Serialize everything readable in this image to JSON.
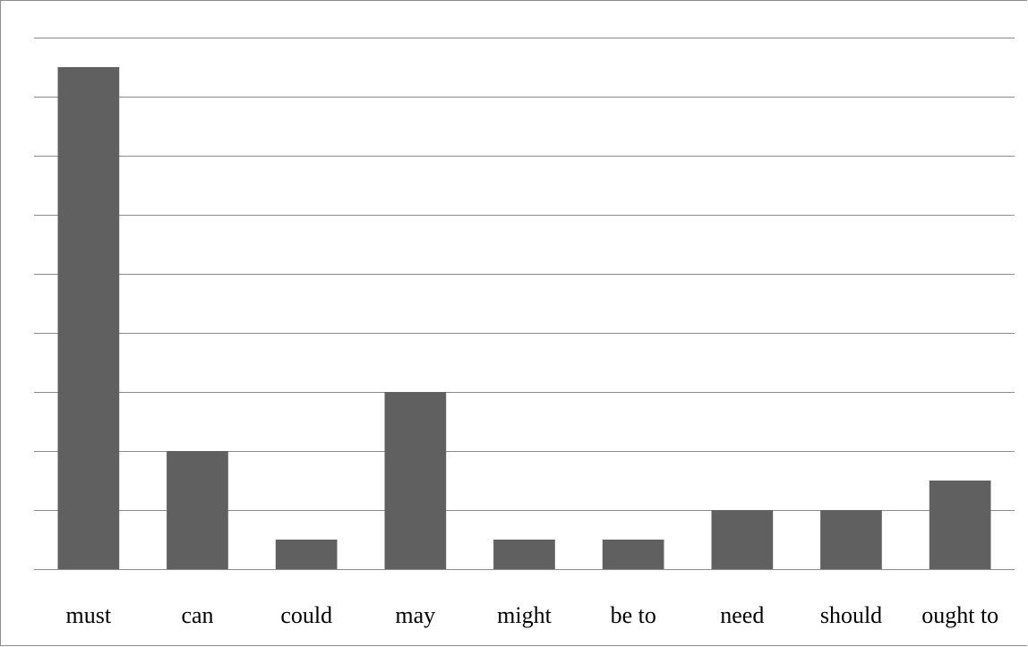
{
  "chart_data": {
    "type": "bar",
    "title": "",
    "xlabel": "",
    "ylabel": "",
    "categories": [
      "must",
      "can",
      "could",
      "may",
      "might",
      "be to",
      "need",
      "should",
      "ought to"
    ],
    "values": [
      17,
      4,
      1,
      6,
      1,
      1,
      2,
      2,
      3
    ],
    "ylim": [
      0,
      18
    ],
    "ytick_step": 2,
    "grid": true,
    "legend": "none",
    "bar_color": "#606060",
    "grid_color": "#8c8c8c"
  }
}
